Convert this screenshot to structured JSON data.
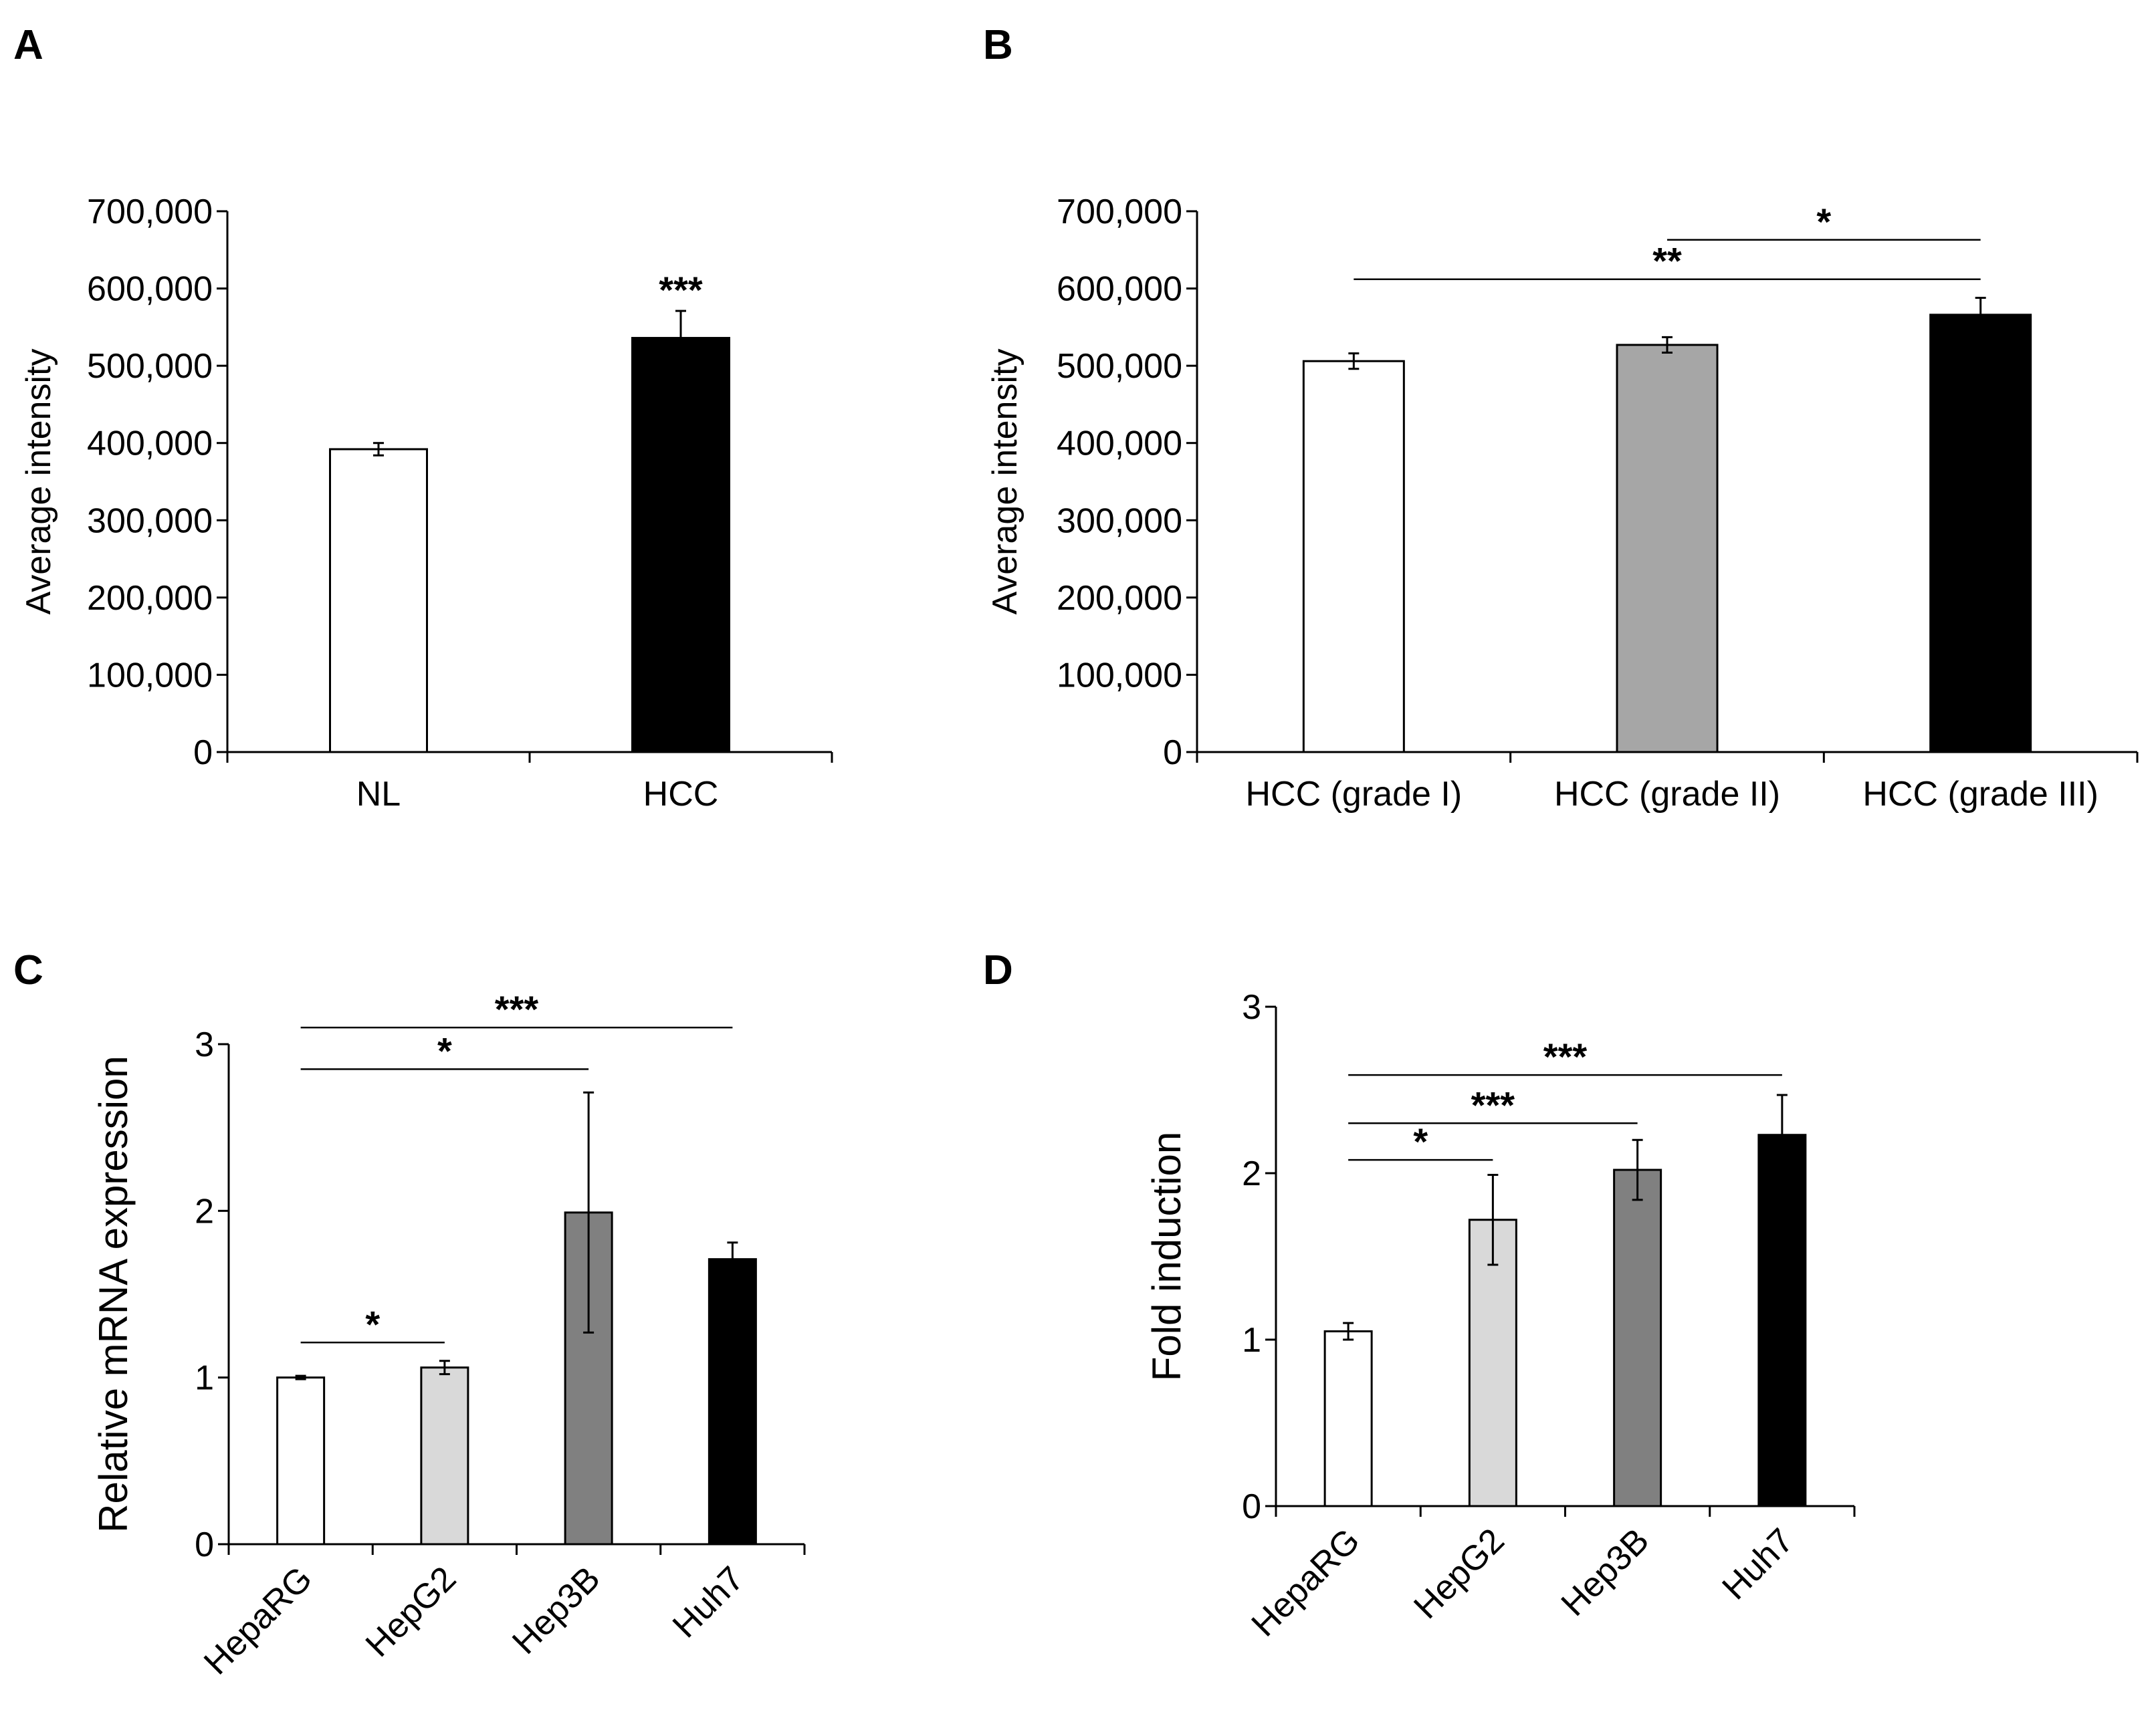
{
  "chart_data": [
    {
      "panel": "A",
      "type": "bar",
      "categories": [
        "NL",
        "HCC"
      ],
      "values": [
        392000,
        536000
      ],
      "errors": [
        8000,
        35000
      ],
      "colors": [
        "#ffffff",
        "#000000"
      ],
      "ylabel": "Average intensity",
      "ylim": [
        0,
        700000
      ],
      "yticks": [
        0,
        100000,
        200000,
        300000,
        400000,
        500000,
        600000,
        700000
      ],
      "ytick_labels": [
        "0",
        "100,000",
        "200,000",
        "300,000",
        "400,000",
        "500,000",
        "600,000",
        "700,000"
      ],
      "annotations": [
        {
          "text": "***",
          "category": "HCC"
        }
      ],
      "brackets": []
    },
    {
      "panel": "B",
      "type": "bar",
      "categories": [
        "HCC (grade I)",
        "HCC (grade II)",
        "HCC (grade III)"
      ],
      "values": [
        506000,
        527000,
        566000
      ],
      "errors": [
        10000,
        10000,
        22000
      ],
      "colors": [
        "#ffffff",
        "#a6a6a6",
        "#000000"
      ],
      "ylabel": "Average intensity",
      "ylim": [
        0,
        700000
      ],
      "yticks": [
        0,
        100000,
        200000,
        300000,
        400000,
        500000,
        600000,
        700000
      ],
      "ytick_labels": [
        "0",
        "100,000",
        "200,000",
        "300,000",
        "400,000",
        "500,000",
        "600,000",
        "700,000"
      ],
      "annotations": [],
      "brackets": [
        {
          "from": 0,
          "to": 2,
          "y": 612000,
          "text": "**"
        },
        {
          "from": 1,
          "to": 2,
          "y": 663000,
          "text": "*"
        }
      ]
    },
    {
      "panel": "C",
      "type": "bar",
      "categories": [
        "HepaRG",
        "HepG2",
        "Hep3B",
        "Huh7"
      ],
      "values": [
        1.0,
        1.06,
        1.99,
        1.71
      ],
      "errors": [
        0.01,
        0.04,
        0.72,
        0.1
      ],
      "colors": [
        "#ffffff",
        "#d9d9d9",
        "#808080",
        "#000000"
      ],
      "ylabel": "Relative mRNA expression",
      "ylim": [
        0,
        3
      ],
      "yticks": [
        0,
        1,
        2,
        3
      ],
      "ytick_labels": [
        "0",
        "1",
        "2",
        "3"
      ],
      "annotations": [],
      "brackets": [
        {
          "from": 0,
          "to": 1,
          "y": 1.21,
          "text": "*"
        },
        {
          "from": 0,
          "to": 2,
          "y": 2.85,
          "text": "*"
        },
        {
          "from": 0,
          "to": 3,
          "y": 3.1,
          "text": "***"
        }
      ]
    },
    {
      "panel": "D",
      "type": "bar",
      "categories": [
        "HepaRG",
        "HepG2",
        "Hep3B",
        "Huh7"
      ],
      "values": [
        1.05,
        1.72,
        2.02,
        2.23
      ],
      "errors": [
        0.05,
        0.27,
        0.18,
        0.24
      ],
      "colors": [
        "#ffffff",
        "#d9d9d9",
        "#808080",
        "#000000"
      ],
      "ylabel": "Fold induction",
      "ylim": [
        0,
        3
      ],
      "yticks": [
        0,
        1,
        2,
        3
      ],
      "ytick_labels": [
        "0",
        "1",
        "2",
        "3"
      ],
      "annotations": [],
      "brackets": [
        {
          "from": 0,
          "to": 1,
          "y": 2.08,
          "text": "*"
        },
        {
          "from": 0,
          "to": 2,
          "y": 2.3,
          "text": "***"
        },
        {
          "from": 0,
          "to": 3,
          "y": 2.59,
          "text": "***"
        }
      ]
    }
  ]
}
